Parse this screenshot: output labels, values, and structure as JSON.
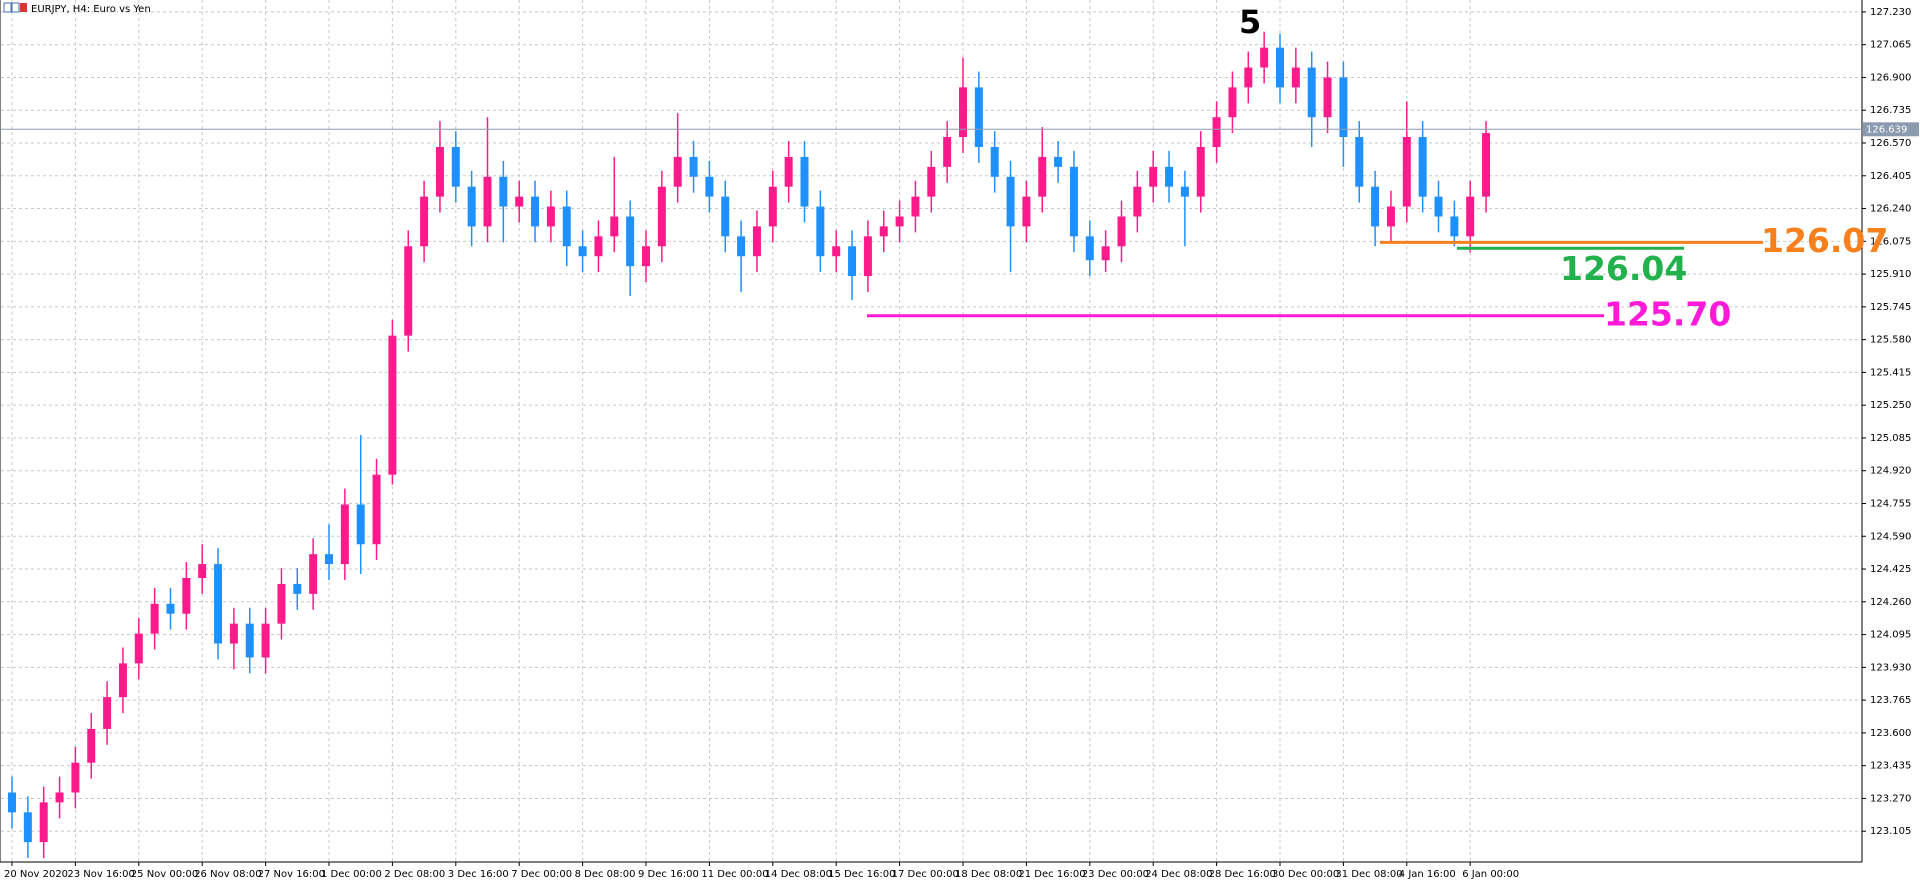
{
  "chart_data": {
    "type": "candlestick",
    "title": "EURJPY, H4:  Euro vs Yen",
    "categories": [
      "20 Nov 2020",
      null,
      null,
      null,
      "23 Nov 16:00",
      null,
      null,
      null,
      "25 Nov 00:00",
      null,
      null,
      null,
      "26 Nov 08:00",
      null,
      null,
      null,
      "27 Nov 16:00",
      null,
      null,
      null,
      "1 Dec 00:00",
      null,
      null,
      null,
      "2 Dec 08:00",
      null,
      null,
      null,
      "3 Dec 16:00",
      null,
      null,
      null,
      "7 Dec 00:00",
      null,
      null,
      null,
      "8 Dec 08:00",
      null,
      null,
      null,
      "9 Dec 16:00",
      null,
      null,
      null,
      "11 Dec 00:00",
      null,
      null,
      null,
      "14 Dec 08:00",
      null,
      null,
      null,
      "15 Dec 16:00",
      null,
      null,
      null,
      "17 Dec 00:00",
      null,
      null,
      null,
      "18 Dec 08:00",
      null,
      null,
      null,
      "21 Dec 16:00",
      null,
      null,
      null,
      "23 Dec 00:00",
      null,
      null,
      null,
      "24 Dec 08:00",
      null,
      null,
      null,
      "28 Dec 16:00",
      null,
      null,
      null,
      "30 Dec 00:00",
      null,
      null,
      null,
      "31 Dec 08:00",
      null,
      null,
      null,
      "4 Jan 16:00",
      null,
      null,
      null,
      "6 Jan 00:00",
      null
    ],
    "open": [
      123.3,
      123.2,
      123.05,
      123.25,
      123.3,
      123.45,
      123.62,
      123.78,
      123.95,
      124.1,
      124.25,
      124.2,
      124.38,
      124.45,
      124.05,
      124.15,
      123.98,
      124.15,
      124.35,
      124.3,
      124.5,
      124.45,
      124.75,
      124.55,
      124.9,
      125.6,
      126.05,
      126.3,
      126.55,
      126.35,
      126.15,
      126.4,
      126.25,
      126.3,
      126.15,
      126.25,
      126.05,
      126.0,
      126.1,
      126.2,
      125.95,
      126.05,
      126.35,
      126.5,
      126.4,
      126.3,
      126.1,
      126.0,
      126.15,
      126.35,
      126.5,
      126.25,
      126.0,
      126.05,
      125.9,
      126.1,
      126.15,
      126.2,
      126.3,
      126.45,
      126.6,
      126.85,
      126.55,
      126.4,
      126.15,
      126.3,
      126.5,
      126.45,
      126.1,
      125.98,
      126.05,
      126.2,
      126.35,
      126.45,
      126.35,
      126.3,
      126.55,
      126.7,
      126.85,
      126.95,
      127.05,
      126.85,
      126.95,
      126.7,
      126.9,
      126.6,
      126.35,
      126.15,
      126.25,
      126.6,
      126.3,
      126.2,
      126.1,
      126.3
    ],
    "high": [
      123.38,
      123.28,
      123.33,
      123.38,
      123.53,
      123.7,
      123.86,
      124.03,
      124.18,
      124.33,
      124.33,
      124.46,
      124.55,
      124.53,
      124.23,
      124.23,
      124.23,
      124.43,
      124.43,
      124.58,
      124.65,
      124.83,
      125.1,
      124.98,
      125.68,
      126.13,
      126.38,
      126.68,
      126.63,
      126.43,
      126.7,
      126.48,
      126.38,
      126.38,
      126.33,
      126.33,
      126.13,
      126.18,
      126.5,
      126.28,
      126.13,
      126.43,
      126.72,
      126.58,
      126.48,
      126.38,
      126.18,
      126.23,
      126.43,
      126.58,
      126.58,
      126.33,
      126.13,
      126.13,
      126.18,
      126.23,
      126.28,
      126.38,
      126.53,
      126.68,
      127.0,
      126.93,
      126.63,
      126.48,
      126.38,
      126.65,
      126.58,
      126.53,
      126.18,
      126.13,
      126.28,
      126.43,
      126.53,
      126.53,
      126.43,
      126.63,
      126.78,
      126.93,
      127.03,
      127.13,
      127.12,
      127.05,
      127.03,
      126.98,
      126.98,
      126.68,
      126.43,
      126.33,
      126.78,
      126.68,
      126.38,
      126.28,
      126.38,
      126.68
    ],
    "low": [
      123.12,
      122.97,
      122.97,
      123.17,
      123.22,
      123.37,
      123.54,
      123.7,
      123.87,
      124.02,
      124.12,
      124.12,
      124.3,
      123.97,
      123.92,
      123.9,
      123.9,
      124.07,
      124.22,
      124.22,
      124.37,
      124.37,
      124.4,
      124.47,
      124.85,
      125.52,
      125.97,
      126.22,
      126.27,
      126.05,
      126.07,
      126.07,
      126.17,
      126.07,
      126.07,
      125.95,
      125.92,
      125.92,
      126.02,
      125.8,
      125.87,
      125.97,
      126.27,
      126.32,
      126.22,
      126.02,
      125.82,
      125.92,
      126.07,
      126.27,
      126.17,
      125.92,
      125.92,
      125.78,
      125.82,
      126.02,
      126.07,
      126.12,
      126.22,
      126.37,
      126.52,
      126.47,
      126.32,
      125.92,
      126.07,
      126.22,
      126.37,
      126.02,
      125.9,
      125.92,
      125.97,
      126.12,
      126.27,
      126.27,
      126.05,
      126.22,
      126.47,
      126.62,
      126.77,
      126.87,
      126.77,
      126.77,
      126.55,
      126.62,
      126.45,
      126.27,
      126.05,
      126.07,
      126.17,
      126.22,
      126.12,
      126.05,
      126.02,
      126.22
    ],
    "close": [
      123.2,
      123.05,
      123.25,
      123.3,
      123.45,
      123.62,
      123.78,
      123.95,
      124.1,
      124.25,
      124.2,
      124.38,
      124.45,
      124.05,
      124.15,
      123.98,
      124.15,
      124.35,
      124.3,
      124.5,
      124.45,
      124.75,
      124.55,
      124.9,
      125.6,
      126.05,
      126.3,
      126.55,
      126.35,
      126.15,
      126.4,
      126.25,
      126.3,
      126.15,
      126.25,
      126.05,
      126.0,
      126.1,
      126.2,
      125.95,
      126.05,
      126.35,
      126.5,
      126.4,
      126.3,
      126.1,
      126.0,
      126.15,
      126.35,
      126.5,
      126.25,
      126.0,
      126.05,
      125.9,
      126.1,
      126.15,
      126.2,
      126.3,
      126.45,
      126.6,
      126.85,
      126.55,
      126.4,
      126.15,
      126.3,
      126.5,
      126.45,
      126.1,
      125.98,
      126.05,
      126.2,
      126.35,
      126.45,
      126.35,
      126.3,
      126.55,
      126.7,
      126.85,
      126.95,
      127.05,
      126.85,
      126.95,
      126.7,
      126.9,
      126.6,
      126.35,
      126.15,
      126.25,
      126.6,
      126.3,
      126.2,
      126.1,
      126.3,
      126.62
    ],
    "up_color": "#ff1a8c",
    "down_color": "#1e90ff",
    "ylim": [
      122.95,
      127.29
    ],
    "yticks": [
      {
        "value": 123.105,
        "label": "123.105"
      },
      {
        "value": 123.27,
        "label": "123.270"
      },
      {
        "value": 123.435,
        "label": "123.435"
      },
      {
        "value": 123.6,
        "label": "123.600"
      },
      {
        "value": 123.765,
        "label": "123.765"
      },
      {
        "value": 123.93,
        "label": "123.930"
      },
      {
        "value": 124.095,
        "label": "124.095"
      },
      {
        "value": 124.26,
        "label": "124.260"
      },
      {
        "value": 124.425,
        "label": "124.425"
      },
      {
        "value": 124.59,
        "label": "124.590"
      },
      {
        "value": 124.755,
        "label": "124.755"
      },
      {
        "value": 124.92,
        "label": "124.920"
      },
      {
        "value": 125.085,
        "label": "125.085"
      },
      {
        "value": 125.25,
        "label": "125.250"
      },
      {
        "value": 125.415,
        "label": "125.415"
      },
      {
        "value": 125.58,
        "label": "125.580"
      },
      {
        "value": 125.745,
        "label": "125.745"
      },
      {
        "value": 125.91,
        "label": "125.910"
      },
      {
        "value": 126.075,
        "label": "126.075"
      },
      {
        "value": 126.24,
        "label": "126.240"
      },
      {
        "value": 126.405,
        "label": "126.405"
      },
      {
        "value": 126.57,
        "label": "126.570"
      },
      {
        "value": 126.735,
        "label": "126.735"
      },
      {
        "value": 126.9,
        "label": "126.900"
      },
      {
        "value": 127.065,
        "label": "127.065"
      },
      {
        "value": 127.23,
        "label": "127.230"
      }
    ],
    "grid": true,
    "last_price": 126.639,
    "levels": [
      {
        "value": 126.07,
        "label": "126.07",
        "color": "#f7801e"
      },
      {
        "value": 126.04,
        "label": "126.04",
        "color": "#22b14c"
      },
      {
        "value": 125.7,
        "label": "125.70",
        "color": "#ff19d9"
      }
    ],
    "annotation": "5"
  }
}
